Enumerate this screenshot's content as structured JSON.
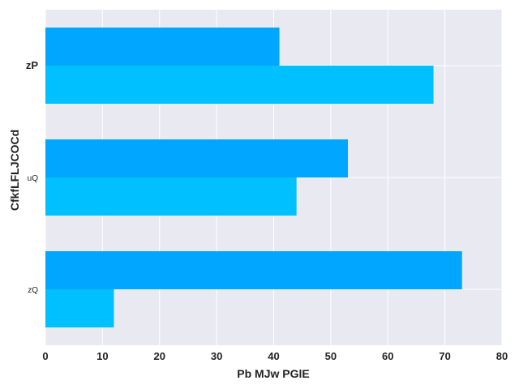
{
  "chart_data": {
    "type": "bar",
    "orientation": "horizontal",
    "categories": [
      "zP",
      "uQ",
      "zQ"
    ],
    "series": [
      {
        "values": [
          68,
          44,
          12
        ],
        "color": "#00c0ff"
      },
      {
        "values": [
          41,
          53,
          73
        ],
        "color": "#00a6ff"
      }
    ],
    "xlabel": "Pb  MJw PGlE",
    "ylabel": "CfkfLFLJCOCd",
    "xlim": [
      0,
      80
    ],
    "xticks": [
      0,
      10,
      20,
      30,
      40,
      50,
      60,
      70,
      80
    ],
    "grid": true,
    "background": "#e9e9f2",
    "gridColor": "#ffffff"
  }
}
